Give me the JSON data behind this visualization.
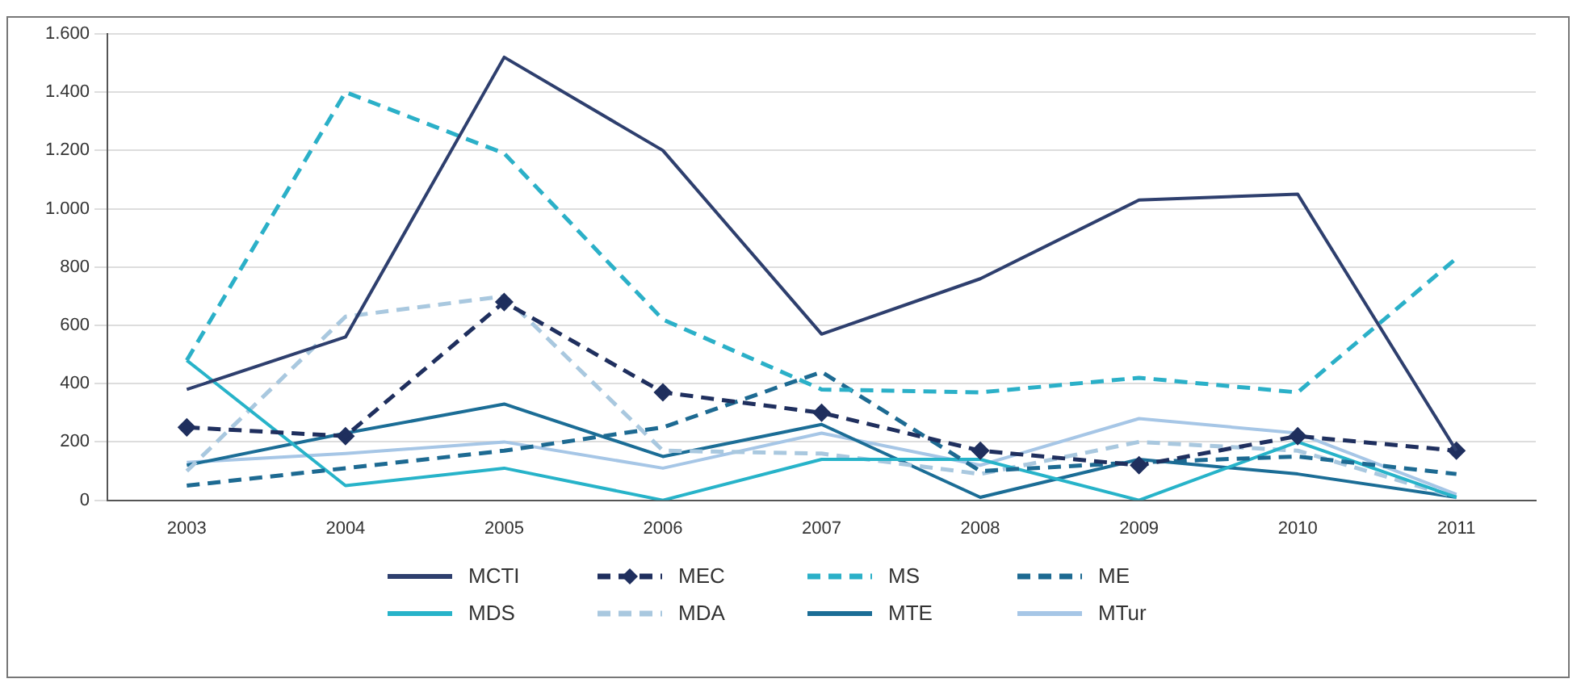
{
  "chart_data": {
    "type": "line",
    "categories": [
      "2003",
      "2004",
      "2005",
      "2006",
      "2007",
      "2008",
      "2009",
      "2010",
      "2011"
    ],
    "series": [
      {
        "name": "MCTI",
        "color": "#2e3f6e",
        "line_style": "solid",
        "marker": "none",
        "values": [
          380,
          560,
          1520,
          1200,
          570,
          760,
          1030,
          1050,
          170
        ]
      },
      {
        "name": "MEC",
        "color": "#1f2f5e",
        "line_style": "dashed",
        "marker": "diamond",
        "values": [
          250,
          220,
          680,
          370,
          300,
          170,
          120,
          220,
          170
        ]
      },
      {
        "name": "MS",
        "color": "#2bb0c8",
        "line_style": "dashed",
        "marker": "none",
        "values": [
          480,
          1400,
          1190,
          620,
          380,
          370,
          420,
          370,
          830
        ]
      },
      {
        "name": "ME",
        "color": "#1d6a92",
        "line_style": "dashed",
        "marker": "none",
        "values": [
          50,
          110,
          170,
          250,
          440,
          100,
          130,
          150,
          90
        ]
      },
      {
        "name": "MDS",
        "color": "#27b3c9",
        "line_style": "solid",
        "marker": "none",
        "values": [
          480,
          50,
          110,
          0,
          140,
          140,
          0,
          200,
          10
        ]
      },
      {
        "name": "MDA",
        "color": "#a9c8df",
        "line_style": "dashed",
        "marker": "none",
        "values": [
          100,
          630,
          700,
          170,
          160,
          90,
          200,
          170,
          10
        ]
      },
      {
        "name": "MTE",
        "color": "#1b6d96",
        "line_style": "solid",
        "marker": "none",
        "values": [
          120,
          230,
          330,
          150,
          260,
          10,
          140,
          90,
          10
        ]
      },
      {
        "name": "MTur",
        "color": "#a6c6e6",
        "line_style": "solid",
        "marker": "none",
        "values": [
          130,
          160,
          200,
          110,
          230,
          120,
          280,
          230,
          20
        ]
      }
    ],
    "ylim": [
      0,
      1600
    ],
    "yticks": [
      {
        "value": 0,
        "label": "0"
      },
      {
        "value": 200,
        "label": "200"
      },
      {
        "value": 400,
        "label": "400"
      },
      {
        "value": 600,
        "label": "600"
      },
      {
        "value": 800,
        "label": "800"
      },
      {
        "value": 1000,
        "label": "1.000"
      },
      {
        "value": 1200,
        "label": "1.200"
      },
      {
        "value": 1400,
        "label": "1.400"
      },
      {
        "value": 1600,
        "label": "1.600"
      }
    ],
    "grid": "y",
    "legend": "bottom"
  }
}
